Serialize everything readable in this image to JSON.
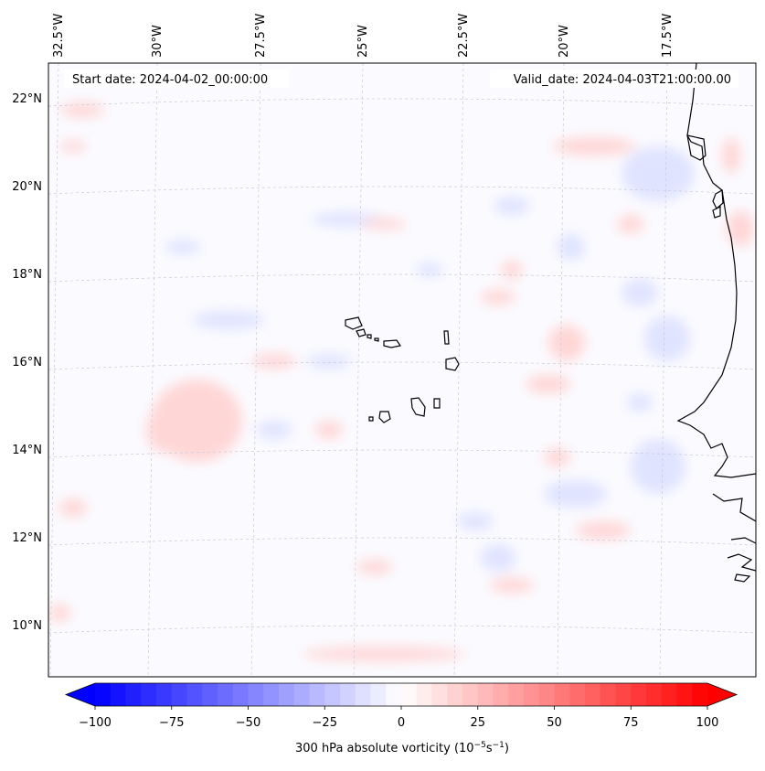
{
  "map": {
    "start_date": "Start date: 2024-04-02_00:00:00",
    "valid_date": "Valid_date: 2024-04-03T21:00:00.00",
    "lon_labels": [
      "32.5°W",
      "30°W",
      "27.5°W",
      "25°W",
      "22.5°W",
      "20°W",
      "17.5°W"
    ],
    "lat_labels": [
      "22°N",
      "20°N",
      "18°N",
      "16°N",
      "14°N",
      "12°N",
      "10°N"
    ],
    "field_colors": {
      "positive": "#ffd6d6",
      "negative": "#dfe3ff",
      "background": "#f6f7ff"
    },
    "coastline_color": "#000000"
  },
  "colorbar": {
    "ticks": [
      "−100",
      "−75",
      "−50",
      "−25",
      "0",
      "25",
      "50",
      "75",
      "100"
    ],
    "label_prefix": "300 hPa absolute vorticity (10",
    "label_exp1": "−5",
    "label_mid": "s",
    "label_exp2": "−1",
    "label_suffix": ")",
    "min_color": "#0000ff",
    "mid_color": "#ffffff",
    "max_color": "#ff0000"
  }
}
